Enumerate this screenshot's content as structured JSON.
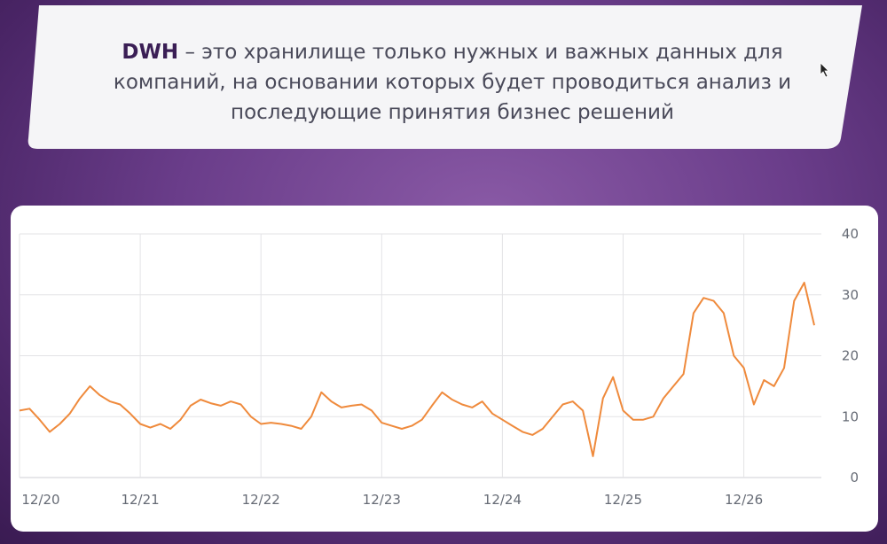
{
  "banner": {
    "keyword": "DWH",
    "rest": " – это хранилище только нужных и важных данных для компаний, на основании которых будет проводиться анализ и последующие принятия бизнес решений"
  },
  "colors": {
    "line": "#ef8a3c",
    "grid": "#e3e3e6",
    "text": "#666b75",
    "keyword": "#3a1e55"
  },
  "chart_data": {
    "type": "line",
    "title": "",
    "xlabel": "",
    "ylabel": "",
    "x_tick_labels": [
      "12/20",
      "12/21",
      "12/22",
      "12/23",
      "12/24",
      "12/25",
      "12/26"
    ],
    "y_ticks": [
      0,
      10,
      20,
      30,
      40
    ],
    "y_axis_side": "right",
    "ylim": [
      0,
      40
    ],
    "xlim": [
      "2020-12",
      "2027-07"
    ],
    "grid": true,
    "series": [
      {
        "name": "",
        "points": [
          [
            "2020-12",
            11.0
          ],
          [
            "2021-01",
            11.3
          ],
          [
            "2021-02",
            9.5
          ],
          [
            "2021-03",
            7.5
          ],
          [
            "2021-04",
            8.8
          ],
          [
            "2021-05",
            10.5
          ],
          [
            "2021-06",
            13.0
          ],
          [
            "2021-07",
            15.0
          ],
          [
            "2021-08",
            13.5
          ],
          [
            "2021-09",
            12.5
          ],
          [
            "2021-10",
            12.0
          ],
          [
            "2021-11",
            10.5
          ],
          [
            "2021-12",
            8.8
          ],
          [
            "2022-01",
            8.2
          ],
          [
            "2022-02",
            8.8
          ],
          [
            "2022-03",
            8.0
          ],
          [
            "2022-04",
            9.5
          ],
          [
            "2022-05",
            11.8
          ],
          [
            "2022-06",
            12.8
          ],
          [
            "2022-07",
            12.2
          ],
          [
            "2022-08",
            11.8
          ],
          [
            "2022-09",
            12.5
          ],
          [
            "2022-10",
            12.0
          ],
          [
            "2022-11",
            10.0
          ],
          [
            "2022-12",
            8.8
          ],
          [
            "2023-01",
            9.0
          ],
          [
            "2023-02",
            8.8
          ],
          [
            "2023-03",
            8.5
          ],
          [
            "2023-04",
            8.0
          ],
          [
            "2023-05",
            10.0
          ],
          [
            "2023-06",
            14.0
          ],
          [
            "2023-07",
            12.5
          ],
          [
            "2023-08",
            11.5
          ],
          [
            "2023-09",
            11.8
          ],
          [
            "2023-10",
            12.0
          ],
          [
            "2023-11",
            11.0
          ],
          [
            "2023-12",
            9.0
          ],
          [
            "2024-01",
            8.5
          ],
          [
            "2024-02",
            8.0
          ],
          [
            "2024-03",
            8.5
          ],
          [
            "2024-04",
            9.5
          ],
          [
            "2024-05",
            11.8
          ],
          [
            "2024-06",
            14.0
          ],
          [
            "2024-07",
            12.8
          ],
          [
            "2024-08",
            12.0
          ],
          [
            "2024-09",
            11.5
          ],
          [
            "2024-10",
            12.5
          ],
          [
            "2024-11",
            10.5
          ],
          [
            "2024-12",
            9.5
          ],
          [
            "2025-01",
            8.5
          ],
          [
            "2025-02",
            7.5
          ],
          [
            "2025-03",
            7.0
          ],
          [
            "2025-04",
            8.0
          ],
          [
            "2025-05",
            10.0
          ],
          [
            "2025-06",
            12.0
          ],
          [
            "2025-07",
            12.5
          ],
          [
            "2025-08",
            11.0
          ],
          [
            "2025-09",
            3.5
          ],
          [
            "2025-10",
            13.0
          ],
          [
            "2025-11",
            16.5
          ],
          [
            "2025-12",
            11.0
          ],
          [
            "2026-01",
            9.5
          ],
          [
            "2026-02",
            9.5
          ],
          [
            "2026-03",
            10.0
          ],
          [
            "2026-04",
            13.0
          ],
          [
            "2026-05",
            15.0
          ],
          [
            "2026-06",
            17.0
          ],
          [
            "2026-07",
            27.0
          ],
          [
            "2026-08",
            29.5
          ],
          [
            "2026-09",
            29.0
          ],
          [
            "2026-10",
            27.0
          ],
          [
            "2026-11",
            20.0
          ],
          [
            "2026-12",
            18.0
          ],
          [
            "2027-01",
            12.0
          ],
          [
            "2027-02",
            16.0
          ],
          [
            "2027-03",
            15.0
          ],
          [
            "2027-04",
            18.0
          ],
          [
            "2027-05",
            29.0
          ],
          [
            "2027-06",
            32.0
          ],
          [
            "2027-07",
            25.0
          ]
        ]
      }
    ]
  }
}
